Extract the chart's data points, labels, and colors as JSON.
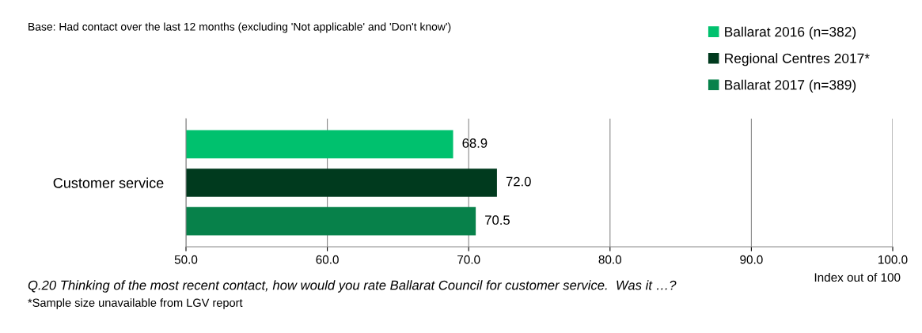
{
  "chart_data": {
    "type": "bar",
    "orientation": "horizontal",
    "categories": [
      "Customer service"
    ],
    "series": [
      {
        "name": "Ballarat 2016 (n=382)",
        "color": "#00c16e",
        "values": [
          68.9
        ],
        "value_labels": [
          "68.9"
        ]
      },
      {
        "name": "Regional Centres 2017*",
        "color": "#003a1e",
        "values": [
          72.0
        ],
        "value_labels": [
          "72.0"
        ]
      },
      {
        "name": "Ballarat 2017 (n=389)",
        "color": "#07814a",
        "values": [
          70.5
        ],
        "value_labels": [
          "70.5"
        ]
      }
    ],
    "xlim": [
      50,
      100
    ],
    "xticks": [
      {
        "value": 50,
        "label": "50.0"
      },
      {
        "value": 60,
        "label": "60.0"
      },
      {
        "value": 70,
        "label": "70.0"
      },
      {
        "value": 80,
        "label": "80.0"
      },
      {
        "value": 90,
        "label": "90.0"
      },
      {
        "value": 100,
        "label": "100.0"
      }
    ],
    "xlabel": "Index out of 100",
    "grid": "x",
    "legend": "top right",
    "annotations": [
      "Base: Had contact over the last 12 months (excluding 'Not applicable' and 'Don't know')",
      "Q.20 Thinking of the most recent contact, how would you rate Ballarat Council for customer service.  Was it …?",
      "*Sample size unavailable from LGV report"
    ]
  }
}
